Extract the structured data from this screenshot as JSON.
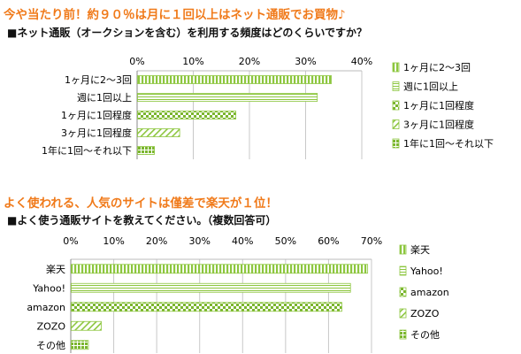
{
  "headline1": "今や当たり前！約９０％は月に１回以上はネット通販でお買物♪",
  "subtitle1": "■ネット通販（オークションを含む）を利用する頻度はどのくらいですか？",
  "headline2": "よく使われる、人気のサイトは僅差で楽天が１位！",
  "subtitle2": "■よく使う通販サイトを教えてください。（複数回答可）",
  "colors": {
    "headline": "#f07a1a",
    "bar_green": "#8dc63f",
    "bar_green_dark": "#7ab52e"
  },
  "chart_data": [
    {
      "type": "bar",
      "orientation": "horizontal",
      "categories": [
        "1ヶ月に2～3回",
        "週に1回以上",
        "1ヶ月に1回程度",
        "3ヶ月に1回程度",
        "1年に1回～それ以下"
      ],
      "values": [
        34.5,
        32,
        17.5,
        7.5,
        3
      ],
      "xlim": [
        0,
        40
      ],
      "xticks": [
        "0%",
        "10%",
        "20%",
        "30%",
        "40%"
      ],
      "grid": true,
      "legend_position": "right",
      "legend": [
        "1ヶ月に2～3回",
        "週に1回以上",
        "1ヶ月に1回程度",
        "3ヶ月に1回程度",
        "1年に1回～それ以下"
      ],
      "patterns": [
        "vstripe",
        "hstripe",
        "checker",
        "diagonal",
        "dots"
      ]
    },
    {
      "type": "bar",
      "orientation": "horizontal",
      "categories": [
        "楽天",
        "Yahoo!",
        "amazon",
        "ZOZO",
        "その他"
      ],
      "values": [
        69,
        65,
        63,
        7,
        4
      ],
      "xlim": [
        0,
        70
      ],
      "xticks": [
        "0%",
        "10%",
        "20%",
        "30%",
        "40%",
        "50%",
        "60%",
        "70%"
      ],
      "grid": true,
      "legend_position": "right",
      "legend": [
        "楽天",
        "Yahoo!",
        "amazon",
        "ZOZO",
        "その他"
      ],
      "patterns": [
        "vstripe",
        "hstripe",
        "checker",
        "diagonal",
        "dots"
      ]
    }
  ]
}
